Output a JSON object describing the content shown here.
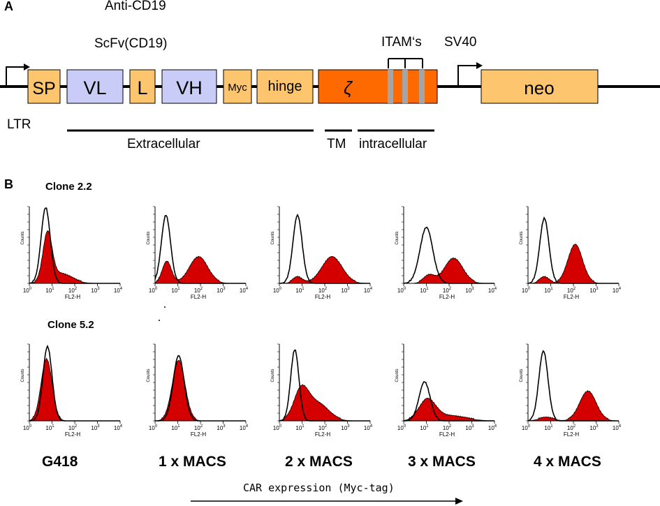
{
  "panel_a": {
    "letter": "A",
    "anti_label": "Anti-CD19",
    "scfv_label": "ScFv(CD19)",
    "itam_label": "ITAM‘s",
    "sv40_label": "SV40",
    "ltr_label": "LTR",
    "boxes": {
      "sp": "SP",
      "vl": "VL",
      "l": "L",
      "vh": "VH",
      "myc": "Myc",
      "hinge": "hinge",
      "zeta": "ζ",
      "neo": "neo"
    },
    "regions": {
      "extracellular": "Extracellular",
      "tm": "TM",
      "intracellular": "intracellular"
    },
    "colors": {
      "orange_box": "#fdc56e",
      "lavender_box": "#c9ccf6",
      "zeta_box": "#ff6a00",
      "itam_stripe": "#a5a5a5"
    }
  },
  "panel_b": {
    "letter": "B",
    "clone_labels": [
      "Clone 2.2",
      "Clone 5.2"
    ],
    "conditions": [
      "G418",
      "1 x MACS",
      "2 x MACS",
      "3 x MACS",
      "4 x MACS"
    ],
    "x_axis_label": "FL2-H",
    "y_axis_label": "Counts",
    "x_ticks": [
      "10",
      "10",
      "10",
      "10",
      "10"
    ],
    "x_tick_exponents": [
      "0",
      "1",
      "2",
      "3",
      "4"
    ],
    "footer_label": "CAR expression (Myc-tag)",
    "fill_color": "#d40000"
  }
}
